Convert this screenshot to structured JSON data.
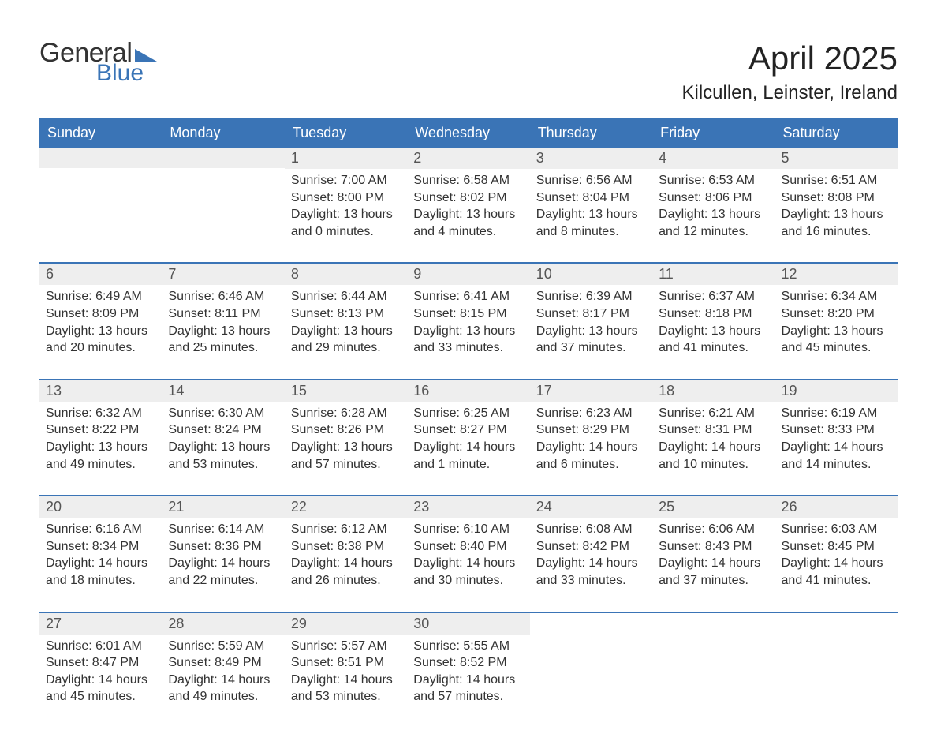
{
  "logo": {
    "line1": "General",
    "line2": "Blue"
  },
  "header": {
    "month_title": "April 2025",
    "location": "Kilcullen, Leinster, Ireland"
  },
  "styling": {
    "header_bg": "#3a74b6",
    "header_text": "#ffffff",
    "daynum_bg": "#eeeeee",
    "week_border": "#3a74b6",
    "body_text": "#333333",
    "page_bg": "#ffffff",
    "title_fontsize_pt": 32,
    "location_fontsize_pt": 18,
    "dow_fontsize_pt": 14,
    "body_fontsize_pt": 12
  },
  "days_of_week": [
    "Sunday",
    "Monday",
    "Tuesday",
    "Wednesday",
    "Thursday",
    "Friday",
    "Saturday"
  ],
  "weeks": [
    [
      {
        "num": "",
        "sunrise": "",
        "sunset": "",
        "daylight": ""
      },
      {
        "num": "",
        "sunrise": "",
        "sunset": "",
        "daylight": ""
      },
      {
        "num": "1",
        "sunrise": "Sunrise: 7:00 AM",
        "sunset": "Sunset: 8:00 PM",
        "daylight": "Daylight: 13 hours and 0 minutes."
      },
      {
        "num": "2",
        "sunrise": "Sunrise: 6:58 AM",
        "sunset": "Sunset: 8:02 PM",
        "daylight": "Daylight: 13 hours and 4 minutes."
      },
      {
        "num": "3",
        "sunrise": "Sunrise: 6:56 AM",
        "sunset": "Sunset: 8:04 PM",
        "daylight": "Daylight: 13 hours and 8 minutes."
      },
      {
        "num": "4",
        "sunrise": "Sunrise: 6:53 AM",
        "sunset": "Sunset: 8:06 PM",
        "daylight": "Daylight: 13 hours and 12 minutes."
      },
      {
        "num": "5",
        "sunrise": "Sunrise: 6:51 AM",
        "sunset": "Sunset: 8:08 PM",
        "daylight": "Daylight: 13 hours and 16 minutes."
      }
    ],
    [
      {
        "num": "6",
        "sunrise": "Sunrise: 6:49 AM",
        "sunset": "Sunset: 8:09 PM",
        "daylight": "Daylight: 13 hours and 20 minutes."
      },
      {
        "num": "7",
        "sunrise": "Sunrise: 6:46 AM",
        "sunset": "Sunset: 8:11 PM",
        "daylight": "Daylight: 13 hours and 25 minutes."
      },
      {
        "num": "8",
        "sunrise": "Sunrise: 6:44 AM",
        "sunset": "Sunset: 8:13 PM",
        "daylight": "Daylight: 13 hours and 29 minutes."
      },
      {
        "num": "9",
        "sunrise": "Sunrise: 6:41 AM",
        "sunset": "Sunset: 8:15 PM",
        "daylight": "Daylight: 13 hours and 33 minutes."
      },
      {
        "num": "10",
        "sunrise": "Sunrise: 6:39 AM",
        "sunset": "Sunset: 8:17 PM",
        "daylight": "Daylight: 13 hours and 37 minutes."
      },
      {
        "num": "11",
        "sunrise": "Sunrise: 6:37 AM",
        "sunset": "Sunset: 8:18 PM",
        "daylight": "Daylight: 13 hours and 41 minutes."
      },
      {
        "num": "12",
        "sunrise": "Sunrise: 6:34 AM",
        "sunset": "Sunset: 8:20 PM",
        "daylight": "Daylight: 13 hours and 45 minutes."
      }
    ],
    [
      {
        "num": "13",
        "sunrise": "Sunrise: 6:32 AM",
        "sunset": "Sunset: 8:22 PM",
        "daylight": "Daylight: 13 hours and 49 minutes."
      },
      {
        "num": "14",
        "sunrise": "Sunrise: 6:30 AM",
        "sunset": "Sunset: 8:24 PM",
        "daylight": "Daylight: 13 hours and 53 minutes."
      },
      {
        "num": "15",
        "sunrise": "Sunrise: 6:28 AM",
        "sunset": "Sunset: 8:26 PM",
        "daylight": "Daylight: 13 hours and 57 minutes."
      },
      {
        "num": "16",
        "sunrise": "Sunrise: 6:25 AM",
        "sunset": "Sunset: 8:27 PM",
        "daylight": "Daylight: 14 hours and 1 minute."
      },
      {
        "num": "17",
        "sunrise": "Sunrise: 6:23 AM",
        "sunset": "Sunset: 8:29 PM",
        "daylight": "Daylight: 14 hours and 6 minutes."
      },
      {
        "num": "18",
        "sunrise": "Sunrise: 6:21 AM",
        "sunset": "Sunset: 8:31 PM",
        "daylight": "Daylight: 14 hours and 10 minutes."
      },
      {
        "num": "19",
        "sunrise": "Sunrise: 6:19 AM",
        "sunset": "Sunset: 8:33 PM",
        "daylight": "Daylight: 14 hours and 14 minutes."
      }
    ],
    [
      {
        "num": "20",
        "sunrise": "Sunrise: 6:16 AM",
        "sunset": "Sunset: 8:34 PM",
        "daylight": "Daylight: 14 hours and 18 minutes."
      },
      {
        "num": "21",
        "sunrise": "Sunrise: 6:14 AM",
        "sunset": "Sunset: 8:36 PM",
        "daylight": "Daylight: 14 hours and 22 minutes."
      },
      {
        "num": "22",
        "sunrise": "Sunrise: 6:12 AM",
        "sunset": "Sunset: 8:38 PM",
        "daylight": "Daylight: 14 hours and 26 minutes."
      },
      {
        "num": "23",
        "sunrise": "Sunrise: 6:10 AM",
        "sunset": "Sunset: 8:40 PM",
        "daylight": "Daylight: 14 hours and 30 minutes."
      },
      {
        "num": "24",
        "sunrise": "Sunrise: 6:08 AM",
        "sunset": "Sunset: 8:42 PM",
        "daylight": "Daylight: 14 hours and 33 minutes."
      },
      {
        "num": "25",
        "sunrise": "Sunrise: 6:06 AM",
        "sunset": "Sunset: 8:43 PM",
        "daylight": "Daylight: 14 hours and 37 minutes."
      },
      {
        "num": "26",
        "sunrise": "Sunrise: 6:03 AM",
        "sunset": "Sunset: 8:45 PM",
        "daylight": "Daylight: 14 hours and 41 minutes."
      }
    ],
    [
      {
        "num": "27",
        "sunrise": "Sunrise: 6:01 AM",
        "sunset": "Sunset: 8:47 PM",
        "daylight": "Daylight: 14 hours and 45 minutes."
      },
      {
        "num": "28",
        "sunrise": "Sunrise: 5:59 AM",
        "sunset": "Sunset: 8:49 PM",
        "daylight": "Daylight: 14 hours and 49 minutes."
      },
      {
        "num": "29",
        "sunrise": "Sunrise: 5:57 AM",
        "sunset": "Sunset: 8:51 PM",
        "daylight": "Daylight: 14 hours and 53 minutes."
      },
      {
        "num": "30",
        "sunrise": "Sunrise: 5:55 AM",
        "sunset": "Sunset: 8:52 PM",
        "daylight": "Daylight: 14 hours and 57 minutes."
      },
      {
        "num": "",
        "sunrise": "",
        "sunset": "",
        "daylight": ""
      },
      {
        "num": "",
        "sunrise": "",
        "sunset": "",
        "daylight": ""
      },
      {
        "num": "",
        "sunrise": "",
        "sunset": "",
        "daylight": ""
      }
    ]
  ]
}
